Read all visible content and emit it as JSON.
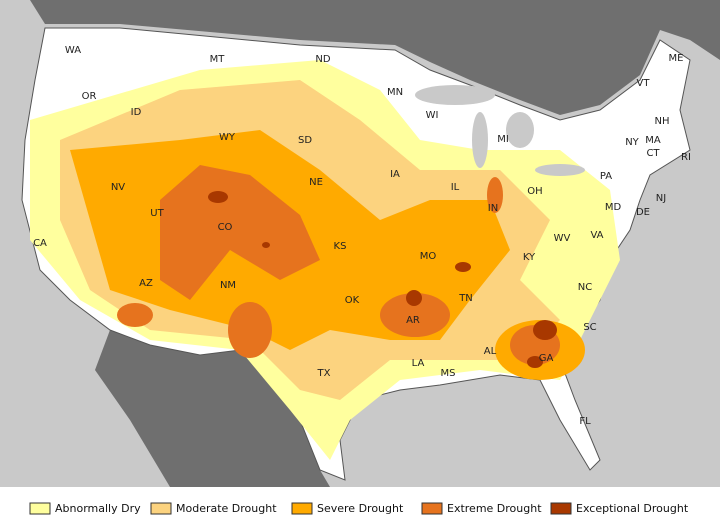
{
  "map": {
    "states": [
      "WA",
      "OR",
      "CA",
      "NV",
      "ID",
      "MT",
      "WY",
      "UT",
      "AZ",
      "CO",
      "NM",
      "ND",
      "SD",
      "NE",
      "KS",
      "OK",
      "TX",
      "MN",
      "IA",
      "MO",
      "AR",
      "LA",
      "WI",
      "IL",
      "MI",
      "IN",
      "OH",
      "KY",
      "TN",
      "MS",
      "AL",
      "GA",
      "FL",
      "SC",
      "NC",
      "VA",
      "WV",
      "PA",
      "NY",
      "VT",
      "NH",
      "ME",
      "MA",
      "CT",
      "RI",
      "NJ",
      "MD",
      "DE"
    ]
  },
  "legend": [
    {
      "label": "Abnormally Dry",
      "color": "#ffff9e"
    },
    {
      "label": "Moderate Drought",
      "color": "#fcd37f"
    },
    {
      "label": "Severe Drought",
      "color": "#ffaa00"
    },
    {
      "label": "Extreme Drought",
      "color": "#e6731e"
    },
    {
      "label": "Exceptional Drought",
      "color": "#a83800"
    }
  ]
}
